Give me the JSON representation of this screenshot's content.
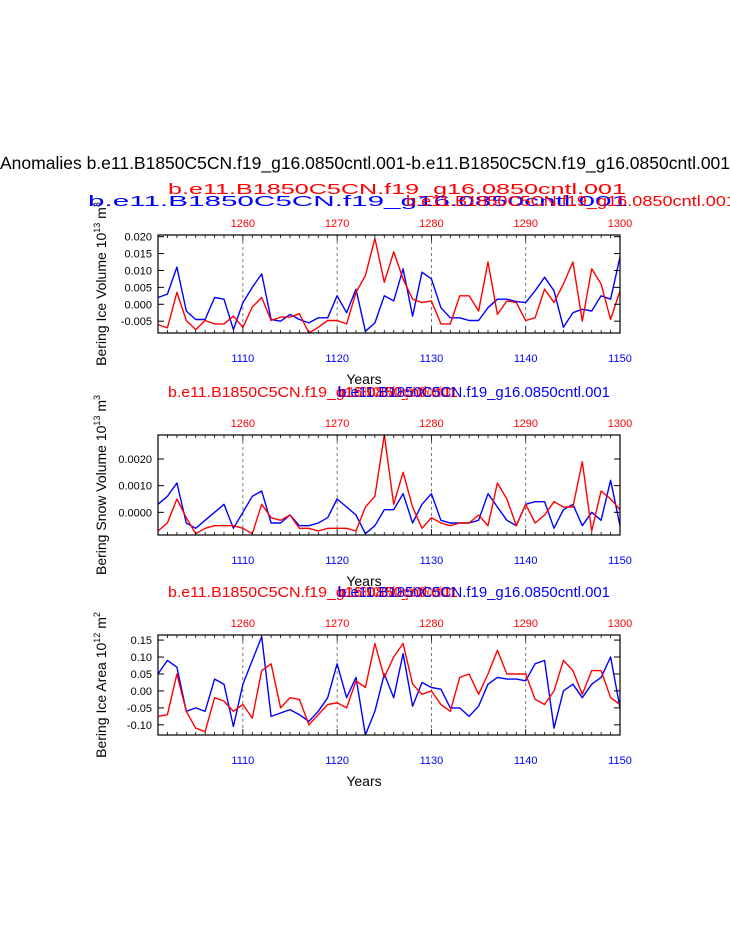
{
  "page": {
    "title": "Anomalies b.e11.B1850C5CN.f19_g16.0850cntl.001-b.e11.B1850C5CN.f19_g16.0850cntl.001"
  },
  "colors": {
    "series_a": "#0000ff",
    "series_b": "#ff0000",
    "axis": "#000000"
  },
  "chart_data": [
    {
      "type": "line",
      "ylabel": "Bering Ice Volume 10^13 m^3",
      "ylabel_base": "Bering Ice Volume 10",
      "ylabel_exp": "13",
      "ylabel_unit": "m",
      "ylabel_unit_exp": "3",
      "xlabel": "Years",
      "x_bottom": {
        "label_color": "#0000ff",
        "ticks": [
          1110,
          1120,
          1130,
          1140,
          1150
        ],
        "range": [
          1101,
          1150
        ]
      },
      "x_top": {
        "label_color": "#ff0000",
        "ticks": [
          1260,
          1270,
          1280,
          1290,
          1300
        ],
        "range": [
          1251,
          1300
        ]
      },
      "ylim": [
        -0.0085,
        0.0205
      ],
      "yticks": [
        "-0.005",
        "0.000",
        "0.005",
        "0.010",
        "0.015",
        "0.020"
      ],
      "ytick_values": [
        -0.005,
        0.0,
        0.005,
        0.01,
        0.015,
        0.02
      ],
      "legend_blue": "b.e11.B1850C5CN.f19_g16.0850cntl.001",
      "legend_red_1": "b.e11.B1850C5CN.f19_g16.0850cntl.001",
      "legend_red_2": "b.e11.B1850C5CN.f19_g16.0850cntl.001",
      "series": [
        {
          "name": "b.e11.B1850C5CN.f19_g16.0850cntl.001",
          "color": "#0000ff",
          "x": [
            1101,
            1102,
            1103,
            1104,
            1105,
            1106,
            1107,
            1108,
            1109,
            1110,
            1111,
            1112,
            1113,
            1114,
            1115,
            1116,
            1117,
            1118,
            1119,
            1120,
            1121,
            1122,
            1123,
            1124,
            1125,
            1126,
            1127,
            1128,
            1129,
            1130,
            1131,
            1132,
            1133,
            1134,
            1135,
            1136,
            1137,
            1138,
            1139,
            1140,
            1141,
            1142,
            1143,
            1144,
            1145,
            1146,
            1147,
            1148,
            1149,
            1150
          ],
          "values": [
            0.002,
            0.003,
            0.011,
            -0.002,
            -0.0045,
            -0.0045,
            0.002,
            0.0015,
            -0.0075,
            0.0005,
            0.005,
            0.009,
            -0.0045,
            -0.005,
            -0.003,
            -0.0045,
            -0.0055,
            -0.004,
            -0.004,
            0.0025,
            -0.0025,
            0.0045,
            -0.008,
            -0.0055,
            0.0025,
            0.001,
            0.0105,
            -0.0035,
            0.0095,
            0.0075,
            -0.001,
            -0.004,
            -0.004,
            -0.0048,
            -0.0048,
            -0.001,
            0.0015,
            0.0015,
            0.0008,
            0.0005,
            0.004,
            0.008,
            0.004,
            -0.0068,
            -0.0025,
            -0.0015,
            -0.002,
            0.0025,
            0.0015,
            0.014
          ]
        },
        {
          "name": "b.e11.B1850C5CN.f19_g16.0850cntl.001",
          "color": "#ff0000",
          "x": [
            1101,
            1102,
            1103,
            1104,
            1105,
            1106,
            1107,
            1108,
            1109,
            1110,
            1111,
            1112,
            1113,
            1114,
            1115,
            1116,
            1117,
            1118,
            1119,
            1120,
            1121,
            1122,
            1123,
            1124,
            1125,
            1126,
            1127,
            1128,
            1129,
            1130,
            1131,
            1132,
            1133,
            1134,
            1135,
            1136,
            1137,
            1138,
            1139,
            1140,
            1141,
            1142,
            1143,
            1144,
            1145,
            1146,
            1147,
            1148,
            1149,
            1150
          ],
          "values": [
            -0.006,
            -0.007,
            0.0035,
            -0.0048,
            -0.0075,
            -0.0048,
            -0.0058,
            -0.0058,
            -0.0035,
            -0.0068,
            -0.0008,
            0.002,
            -0.0048,
            -0.0038,
            -0.0038,
            -0.0028,
            -0.0085,
            -0.0068,
            -0.0048,
            -0.0048,
            -0.0058,
            0.0035,
            0.0085,
            0.0195,
            0.0065,
            0.0155,
            0.0075,
            0.0015,
            0.0005,
            0.001,
            -0.0058,
            -0.0058,
            0.0025,
            0.0025,
            -0.002,
            0.0125,
            -0.003,
            0.001,
            0.0005,
            -0.0048,
            -0.004,
            0.0045,
            0.0005,
            0.006,
            0.0125,
            -0.005,
            0.0105,
            0.006,
            -0.0045,
            0.004
          ]
        }
      ]
    },
    {
      "type": "line",
      "ylabel": "Bering Snow Volume 10^13 m^3",
      "ylabel_base": "Bering Snow Volume 10",
      "ylabel_exp": "13",
      "ylabel_unit": "m",
      "ylabel_unit_exp": "3",
      "xlabel": "Years",
      "x_bottom": {
        "label_color": "#0000ff",
        "ticks": [
          1110,
          1120,
          1130,
          1140,
          1150
        ],
        "range": [
          1101,
          1150
        ]
      },
      "x_top": {
        "label_color": "#ff0000",
        "ticks": [
          1260,
          1270,
          1280,
          1290,
          1300
        ],
        "range": [
          1251,
          1300
        ]
      },
      "ylim": [
        -0.00085,
        0.0029
      ],
      "yticks": [
        "0.0000",
        "0.0010",
        "0.0020"
      ],
      "ytick_values": [
        0.0,
        0.001,
        0.002
      ],
      "legend_blue": "b.e11.B1850C5CN.f19_g16.0850cntl.001",
      "legend_red_1": "b.e11.B1850C5CN.f19_g16.0850cntl.001",
      "legend_red_2": "b.e11.B1850C5CN.f19_g16.0850cntl.001",
      "series": [
        {
          "name": "b.e11.B1850C5CN.f19_g16.0850cntl.001",
          "color": "#0000ff",
          "x": [
            1101,
            1102,
            1103,
            1104,
            1105,
            1106,
            1107,
            1108,
            1109,
            1110,
            1111,
            1112,
            1113,
            1114,
            1115,
            1116,
            1117,
            1118,
            1119,
            1120,
            1121,
            1122,
            1123,
            1124,
            1125,
            1126,
            1127,
            1128,
            1129,
            1130,
            1131,
            1132,
            1133,
            1134,
            1135,
            1136,
            1137,
            1138,
            1139,
            1140,
            1141,
            1142,
            1143,
            1144,
            1145,
            1146,
            1147,
            1148,
            1149,
            1150
          ],
          "values": [
            0.0003,
            0.0006,
            0.0011,
            -0.0004,
            -0.0006,
            -0.0003,
            0.0,
            0.0003,
            -0.0006,
            0.0,
            0.0006,
            0.0008,
            -0.0004,
            -0.0004,
            -0.0001,
            -0.0005,
            -0.0005,
            -0.0004,
            -0.0002,
            0.0005,
            0.0002,
            -0.0001,
            -0.0008,
            -0.0005,
            0.0001,
            0.0001,
            0.0007,
            -0.0004,
            0.0003,
            0.0007,
            -0.0003,
            -0.0004,
            -0.0004,
            -0.0004,
            -0.0003,
            0.0007,
            0.0002,
            -0.0003,
            -0.0005,
            0.0003,
            0.0004,
            0.0004,
            -0.0006,
            0.0001,
            0.0003,
            -0.0005,
            0.0,
            -0.0003,
            0.0012,
            -0.0005
          ]
        },
        {
          "name": "b.e11.B1850C5CN.f19_g16.0850cntl.001",
          "color": "#ff0000",
          "x": [
            1101,
            1102,
            1103,
            1104,
            1105,
            1106,
            1107,
            1108,
            1109,
            1110,
            1111,
            1112,
            1113,
            1114,
            1115,
            1116,
            1117,
            1118,
            1119,
            1120,
            1121,
            1122,
            1123,
            1124,
            1125,
            1126,
            1127,
            1128,
            1129,
            1130,
            1131,
            1132,
            1133,
            1134,
            1135,
            1136,
            1137,
            1138,
            1139,
            1140,
            1141,
            1142,
            1143,
            1144,
            1145,
            1146,
            1147,
            1148,
            1149,
            1150
          ],
          "values": [
            -0.0007,
            -0.0004,
            0.0005,
            -0.0002,
            -0.0008,
            -0.0006,
            -0.0005,
            -0.0005,
            -0.0005,
            -0.0006,
            -0.0008,
            0.0003,
            -0.0002,
            -0.0003,
            -0.0001,
            -0.0006,
            -0.0006,
            -0.0007,
            -0.0006,
            -0.0006,
            -0.0006,
            -0.0007,
            0.0002,
            0.0006,
            0.0029,
            0.0003,
            0.0015,
            0.0002,
            -0.0006,
            -0.0002,
            -0.0004,
            -0.0005,
            -0.0004,
            -0.0004,
            -0.0001,
            -0.0005,
            0.0011,
            0.0005,
            -0.0005,
            0.0003,
            -0.0004,
            -0.0001,
            0.0004,
            0.0002,
            0.0002,
            0.0019,
            -0.0007,
            0.0008,
            0.0005,
            0.0001
          ]
        }
      ]
    },
    {
      "type": "line",
      "ylabel": "Bering Ice Area 10^12 m^2",
      "ylabel_base": "Bering Ice Area 10",
      "ylabel_exp": "12",
      "ylabel_unit": "m",
      "ylabel_unit_exp": "2",
      "xlabel": "Years",
      "x_bottom": {
        "label_color": "#0000ff",
        "ticks": [
          1110,
          1120,
          1130,
          1140,
          1150
        ],
        "range": [
          1101,
          1150
        ]
      },
      "x_top": {
        "label_color": "#ff0000",
        "ticks": [
          1260,
          1270,
          1280,
          1290,
          1300
        ],
        "range": [
          1251,
          1300
        ]
      },
      "ylim": [
        -0.13,
        0.165
      ],
      "yticks": [
        "-0.10",
        "-0.05",
        "0.00",
        "0.05",
        "0.10",
        "0.15"
      ],
      "ytick_values": [
        -0.1,
        -0.05,
        0.0,
        0.05,
        0.1,
        0.15
      ],
      "legend_blue": "b.e11.B1850C5CN.f19_g16.0850cntl.001",
      "legend_red_1": "b.e11.B1850C5CN.f19_g16.0850cntl.001",
      "legend_red_2": "b.e11.B1850C5CN.f19_g16.0850cntl.001",
      "series": [
        {
          "name": "b.e11.B1850C5CN.f19_g16.0850cntl.001",
          "color": "#0000ff",
          "x": [
            1101,
            1102,
            1103,
            1104,
            1105,
            1106,
            1107,
            1108,
            1109,
            1110,
            1111,
            1112,
            1113,
            1114,
            1115,
            1116,
            1117,
            1118,
            1119,
            1120,
            1121,
            1122,
            1123,
            1124,
            1125,
            1126,
            1127,
            1128,
            1129,
            1130,
            1131,
            1132,
            1133,
            1134,
            1135,
            1136,
            1137,
            1138,
            1139,
            1140,
            1141,
            1142,
            1143,
            1144,
            1145,
            1146,
            1147,
            1148,
            1149,
            1150
          ],
          "values": [
            0.05,
            0.09,
            0.07,
            -0.06,
            -0.05,
            -0.06,
            0.035,
            0.02,
            -0.105,
            0.02,
            0.09,
            0.16,
            -0.075,
            -0.065,
            -0.055,
            -0.07,
            -0.09,
            -0.06,
            -0.02,
            0.08,
            -0.02,
            0.04,
            -0.13,
            -0.06,
            0.05,
            -0.02,
            0.11,
            -0.045,
            0.025,
            0.01,
            0.005,
            -0.05,
            -0.05,
            -0.075,
            -0.045,
            0.02,
            0.04,
            0.035,
            0.035,
            0.03,
            0.08,
            0.09,
            -0.11,
            0.0,
            0.02,
            -0.02,
            0.02,
            0.04,
            0.1,
            -0.05
          ]
        },
        {
          "name": "b.e11.B1850C5CN.f19_g16.0850cntl.001",
          "color": "#ff0000",
          "x": [
            1101,
            1102,
            1103,
            1104,
            1105,
            1106,
            1107,
            1108,
            1109,
            1110,
            1111,
            1112,
            1113,
            1114,
            1115,
            1116,
            1117,
            1118,
            1119,
            1120,
            1121,
            1122,
            1123,
            1124,
            1125,
            1126,
            1127,
            1128,
            1129,
            1130,
            1131,
            1132,
            1133,
            1134,
            1135,
            1136,
            1137,
            1138,
            1139,
            1140,
            1141,
            1142,
            1143,
            1144,
            1145,
            1146,
            1147,
            1148,
            1149,
            1150
          ],
          "values": [
            -0.075,
            -0.07,
            0.05,
            -0.06,
            -0.11,
            -0.12,
            -0.02,
            -0.03,
            -0.06,
            -0.04,
            -0.08,
            0.06,
            0.08,
            -0.05,
            -0.02,
            -0.025,
            -0.1,
            -0.07,
            -0.04,
            -0.035,
            -0.05,
            0.03,
            0.01,
            0.14,
            0.04,
            0.1,
            0.14,
            0.02,
            -0.01,
            0.0,
            -0.04,
            -0.06,
            0.04,
            0.05,
            -0.01,
            0.05,
            0.12,
            0.05,
            0.05,
            0.05,
            -0.025,
            -0.04,
            0.0,
            0.09,
            0.06,
            -0.01,
            0.06,
            0.06,
            -0.02,
            -0.04
          ]
        }
      ]
    }
  ]
}
